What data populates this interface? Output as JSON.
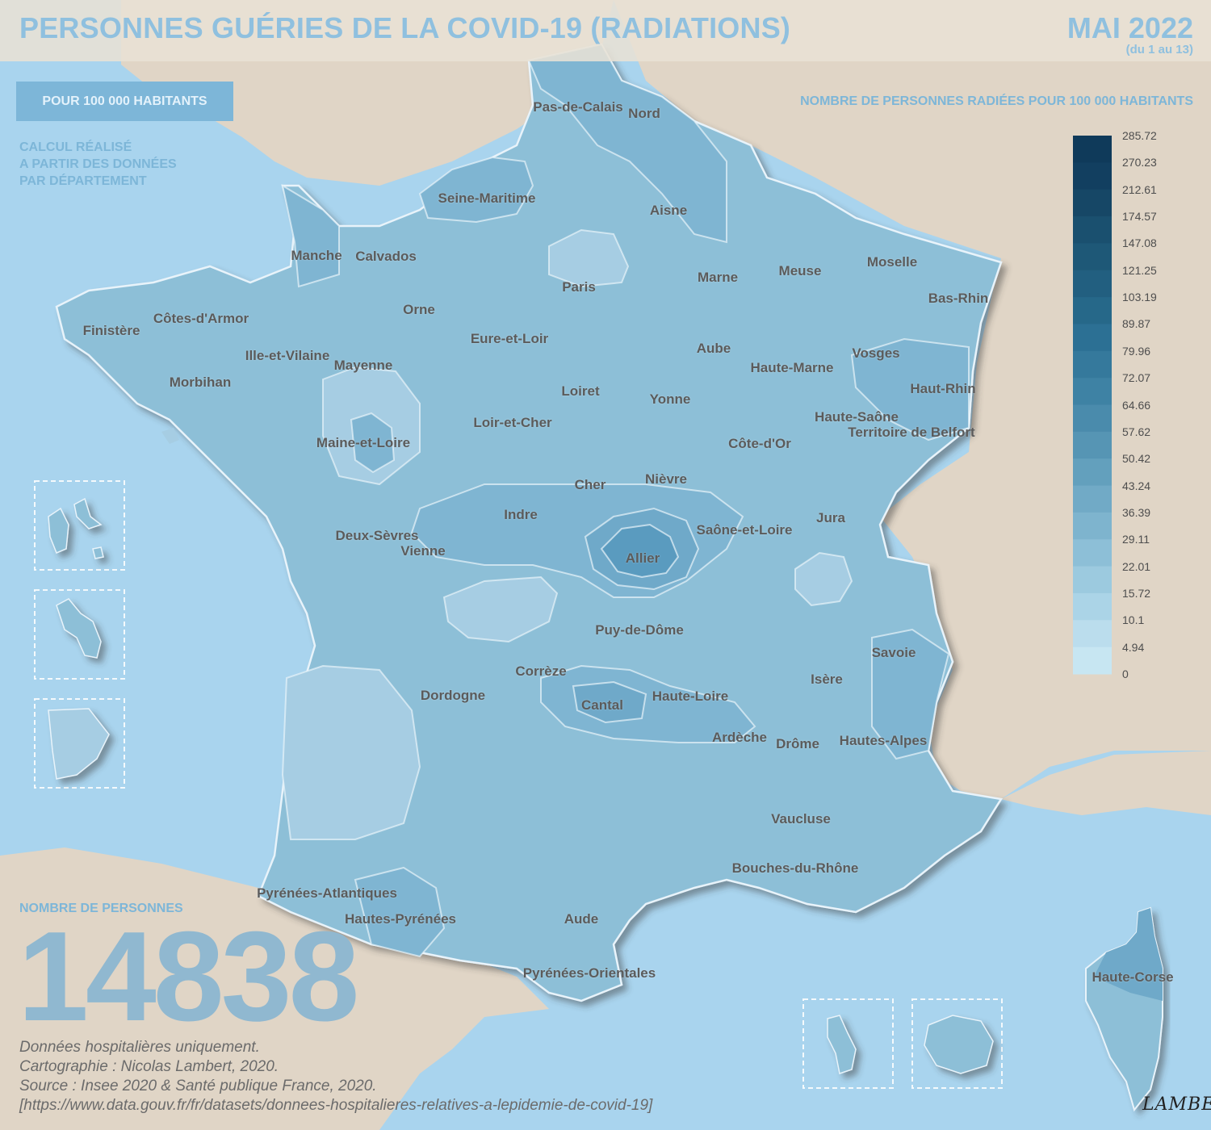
{
  "header": {
    "title": "PERSONNES GUÉRIES DE LA COVID-19 (RADIATIONS)",
    "date": "MAI 2022",
    "date_range": "(du 1 au 13)"
  },
  "ratio_button": {
    "label": "POUR 100 000 HABITANTS"
  },
  "calculation_note": [
    "CALCUL RÉALISÉ",
    "A PARTIR DES DONNÉES",
    "PAR DÉPARTEMENT"
  ],
  "legend": {
    "title": "NOMBRE DE PERSONNES RADIÉES POUR 100 000 HABITANTS",
    "breaks": [
      "285.72",
      "270.23",
      "212.61",
      "174.57",
      "147.08",
      "121.25",
      "103.19",
      "89.87",
      "79.96",
      "72.07",
      "64.66",
      "57.62",
      "50.42",
      "43.24",
      "36.39",
      "29.11",
      "22.01",
      "15.72",
      "10.1",
      "4.94",
      "0"
    ],
    "colors": [
      "#0f3a5a",
      "#123f60",
      "#164766",
      "#1a506f",
      "#1e5877",
      "#225f80",
      "#266889",
      "#2c7094",
      "#35799c",
      "#3e82a4",
      "#4a8bac",
      "#5695b4",
      "#63a0bd",
      "#71aac6",
      "#7eb4ce",
      "#8dbfd7",
      "#9ccadf",
      "#abd4e7",
      "#bbdded",
      "#c7e6f2"
    ]
  },
  "totals": {
    "label": "NOMBRE DE PERSONNES",
    "value": "14838"
  },
  "credits": [
    "Données hospitalières uniquement.",
    "Cartographie : Nicolas Lambert, 2020.",
    "Source : Insee 2020 & Santé publique France, 2020.",
    "[https://www.data.gouv.fr/fr/datasets/donnees-hospitalieres-relatives-a-lepidemie-de-covid-19]"
  ],
  "signature": "LAMBERT",
  "departments": [
    "Pas-de-Calais",
    "Nord",
    "Seine-Maritime",
    "Aisne",
    "Manche",
    "Calvados",
    "Paris",
    "Marne",
    "Meuse",
    "Moselle",
    "Bas-Rhin",
    "Orne",
    "Côtes-d'Armor",
    "Finistère",
    "Eure-et-Loir",
    "Aube",
    "Vosges",
    "Ille-et-Vilaine",
    "Mayenne",
    "Haute-Marne",
    "Morbihan",
    "Loiret",
    "Yonne",
    "Haut-Rhin",
    "Haute-Saône",
    "Loir-et-Cher",
    "Territoire de Belfort",
    "Maine-et-Loire",
    "Côte-d'Or",
    "Cher",
    "Nièvre",
    "Indre",
    "Jura",
    "Saône-et-Loire",
    "Deux-Sèvres",
    "Vienne",
    "Allier",
    "Puy-de-Dôme",
    "Savoie",
    "Corrèze",
    "Isère",
    "Dordogne",
    "Cantal",
    "Haute-Loire",
    "Ardèche",
    "Drôme",
    "Hautes-Alpes",
    "Vaucluse",
    "Bouches-du-Rhône",
    "Pyrénées-Atlantiques",
    "Hautes-Pyrénées",
    "Aude",
    "Haute-Corse",
    "Pyrénées-Orientales"
  ]
}
